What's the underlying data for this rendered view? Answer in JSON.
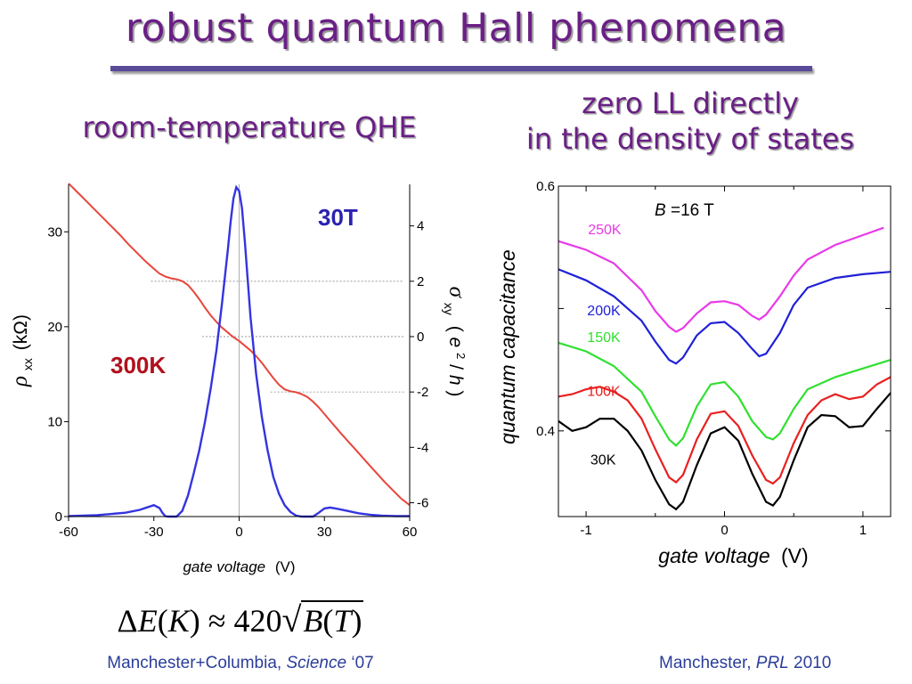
{
  "slide": {
    "title": "robust quantum Hall phenomena",
    "left_heading": "room-temperature QHE",
    "right_heading_line1": "zero LL directly",
    "right_heading_line2": "in the density of states",
    "formula": {
      "delta": "Δ",
      "E": "E",
      "open": "(",
      "K": "K",
      "close": ")",
      "approx": " ≈ 420",
      "B": "B",
      "open2": "(",
      "T": "T",
      "close2": ")"
    },
    "credit_left_a": "Manchester+Columbia, ",
    "credit_left_b": "Science",
    "credit_left_c": " ‘07",
    "credit_right_a": "Manchester, ",
    "credit_right_b": "PRL",
    "credit_right_c": " 2010"
  },
  "chart_data": [
    {
      "type": "line",
      "x_ticks": [
        "-60",
        "-30",
        "0",
        "30",
        "60"
      ],
      "x_range": [
        -60,
        60
      ],
      "xlabel_italic": "gate voltage",
      "xlabel_unit": "(V)",
      "y_left_range": [
        0,
        35
      ],
      "y_left_ticks": [
        "0",
        "10",
        "20",
        "30"
      ],
      "y_left_label": {
        "rho": "ρ",
        "sub": "xx",
        "unit": "(kΩ)"
      },
      "y_right_range": [
        -6.5,
        5.5
      ],
      "y_right_ticks": [
        "4",
        "2",
        "0",
        "-2",
        "-4",
        "-6"
      ],
      "y_right_label": {
        "sigma": "σ",
        "sub": "xy",
        "unit_open": "(",
        "e": "e",
        "sup": "2",
        "rest": "/",
        "h": "h",
        "unit_close": ")"
      },
      "annotations": {
        "field": "30T",
        "temp": "300K"
      },
      "colors": {
        "rho": "#e8453c",
        "sigma": "#3434e0",
        "field": "#2a22b0",
        "temp": "#b0101c"
      },
      "series": [
        {
          "axis": "left",
          "x": [
            -60,
            -57,
            -54,
            -51,
            -48,
            -45,
            -42,
            -39,
            -36,
            -33,
            -30,
            -28,
            -26,
            -24,
            -22,
            -20,
            -18,
            -16,
            -14,
            -12,
            -10,
            -8,
            -6,
            -4,
            -2,
            0,
            2,
            4,
            6,
            8,
            10,
            12,
            14,
            16,
            18,
            20,
            22,
            24,
            26,
            28,
            30,
            32,
            34,
            36,
            39,
            42,
            45,
            48,
            51,
            54,
            57,
            60
          ],
          "values": [
            35.1,
            34.2,
            33.3,
            32.4,
            31.5,
            30.6,
            29.7,
            28.7,
            27.8,
            26.9,
            26.1,
            25.6,
            25.3,
            25.1,
            25.0,
            24.8,
            24.4,
            23.7,
            22.9,
            22.0,
            21.2,
            20.5,
            19.9,
            19.4,
            18.9,
            18.5,
            18.0,
            17.5,
            16.9,
            16.2,
            15.4,
            14.6,
            13.9,
            13.4,
            13.2,
            13.1,
            12.9,
            12.6,
            12.1,
            11.5,
            10.8,
            10.1,
            9.4,
            8.7,
            7.7,
            6.7,
            5.7,
            4.7,
            3.7,
            2.8,
            1.9,
            1.2
          ]
        },
        {
          "axis": "left",
          "x": [
            -60,
            -50,
            -40,
            -35,
            -32,
            -30,
            -28,
            -27,
            -26,
            -25,
            -24,
            -23,
            -22,
            -20,
            -18,
            -16,
            -14,
            -12,
            -10,
            -8,
            -6,
            -4,
            -3,
            -2,
            -1,
            0,
            1,
            2,
            3,
            4,
            6,
            8,
            10,
            12,
            14,
            16,
            18,
            20,
            22,
            24,
            26,
            28,
            30,
            32,
            34,
            38,
            42,
            46,
            50,
            55,
            60
          ],
          "values": [
            0.05,
            0.15,
            0.4,
            0.7,
            1.0,
            1.2,
            0.9,
            0.4,
            0.05,
            0.0,
            0.0,
            0.0,
            0.0,
            0.6,
            2.2,
            4.5,
            7.0,
            10.0,
            13.5,
            17.5,
            22.5,
            28.0,
            31.0,
            33.5,
            34.7,
            34.3,
            32.5,
            29.0,
            25.0,
            21.0,
            15.0,
            10.5,
            7.0,
            4.2,
            2.4,
            1.2,
            0.5,
            0.1,
            0.0,
            0.0,
            0.0,
            0.4,
            0.85,
            0.95,
            0.85,
            0.6,
            0.35,
            0.2,
            0.1,
            0.05,
            0.05
          ]
        }
      ],
      "reference_lines": [
        {
          "y_right": 2,
          "x_from": -31,
          "x_to": 58
        },
        {
          "y_right": 0,
          "x_from": -13,
          "x_to": 58
        },
        {
          "y_right": -2,
          "x_from": 11,
          "x_to": 58
        }
      ],
      "vertical_line_x": 0
    },
    {
      "type": "line",
      "x_range": [
        -1.2,
        1.2
      ],
      "x_ticks": [
        "-1",
        "0",
        "1"
      ],
      "y_range": [
        0.33,
        0.6
      ],
      "y_ticks": [
        "0.6",
        "0.4"
      ],
      "ylabel": "quantum capacitance",
      "xlabel_italic": "gate voltage",
      "xlabel_unit": "(V)",
      "annotation": {
        "B": "B",
        "eq": " =16 T"
      },
      "series": [
        {
          "name": "250K",
          "color": "#e83ae8",
          "x": [
            -1.2,
            -1.0,
            -0.8,
            -0.6,
            -0.5,
            -0.4,
            -0.35,
            -0.3,
            -0.2,
            -0.1,
            0.0,
            0.1,
            0.2,
            0.25,
            0.3,
            0.4,
            0.5,
            0.6,
            0.8,
            1.0,
            1.15
          ],
          "values": [
            0.555,
            0.548,
            0.537,
            0.515,
            0.498,
            0.485,
            0.481,
            0.484,
            0.496,
            0.505,
            0.506,
            0.503,
            0.494,
            0.491,
            0.495,
            0.51,
            0.527,
            0.54,
            0.552,
            0.56,
            0.566
          ]
        },
        {
          "name": "200K",
          "color": "#2020d8",
          "x": [
            -1.2,
            -1.0,
            -0.8,
            -0.6,
            -0.5,
            -0.4,
            -0.35,
            -0.3,
            -0.2,
            -0.1,
            0.0,
            0.1,
            0.2,
            0.25,
            0.3,
            0.4,
            0.5,
            0.6,
            0.8,
            1.0,
            1.2
          ],
          "values": [
            0.532,
            0.523,
            0.51,
            0.49,
            0.473,
            0.458,
            0.455,
            0.46,
            0.478,
            0.488,
            0.489,
            0.48,
            0.467,
            0.461,
            0.463,
            0.48,
            0.503,
            0.517,
            0.525,
            0.528,
            0.53
          ]
        },
        {
          "name": "150K",
          "color": "#30e030",
          "x": [
            -1.2,
            -1.0,
            -0.8,
            -0.6,
            -0.5,
            -0.4,
            -0.35,
            -0.3,
            -0.2,
            -0.1,
            0.0,
            0.1,
            0.2,
            0.3,
            0.35,
            0.4,
            0.5,
            0.6,
            0.8,
            1.0,
            1.2
          ],
          "values": [
            0.472,
            0.465,
            0.453,
            0.432,
            0.412,
            0.393,
            0.388,
            0.394,
            0.42,
            0.438,
            0.44,
            0.428,
            0.408,
            0.395,
            0.393,
            0.398,
            0.418,
            0.434,
            0.444,
            0.451,
            0.458
          ]
        },
        {
          "name": "100K",
          "color": "#e82020",
          "x": [
            -1.2,
            -1.1,
            -1.0,
            -0.9,
            -0.8,
            -0.7,
            -0.6,
            -0.5,
            -0.4,
            -0.35,
            -0.3,
            -0.2,
            -0.1,
            0.0,
            0.1,
            0.2,
            0.3,
            0.35,
            0.4,
            0.5,
            0.6,
            0.7,
            0.8,
            0.9,
            1.0,
            1.1,
            1.2
          ],
          "values": [
            0.428,
            0.43,
            0.434,
            0.436,
            0.432,
            0.425,
            0.41,
            0.385,
            0.362,
            0.358,
            0.364,
            0.393,
            0.414,
            0.416,
            0.404,
            0.38,
            0.36,
            0.357,
            0.362,
            0.39,
            0.413,
            0.425,
            0.43,
            0.426,
            0.428,
            0.438,
            0.444
          ]
        },
        {
          "name": "30K",
          "color": "#000000",
          "x": [
            -1.2,
            -1.1,
            -1.0,
            -0.9,
            -0.8,
            -0.7,
            -0.6,
            -0.5,
            -0.4,
            -0.35,
            -0.3,
            -0.2,
            -0.1,
            0.0,
            0.1,
            0.2,
            0.3,
            0.35,
            0.4,
            0.5,
            0.6,
            0.7,
            0.8,
            0.9,
            1.0,
            1.1,
            1.2
          ],
          "values": [
            0.408,
            0.4,
            0.403,
            0.41,
            0.41,
            0.4,
            0.384,
            0.36,
            0.34,
            0.336,
            0.342,
            0.372,
            0.398,
            0.403,
            0.392,
            0.365,
            0.342,
            0.339,
            0.346,
            0.376,
            0.403,
            0.413,
            0.412,
            0.403,
            0.404,
            0.418,
            0.431
          ]
        }
      ]
    }
  ]
}
